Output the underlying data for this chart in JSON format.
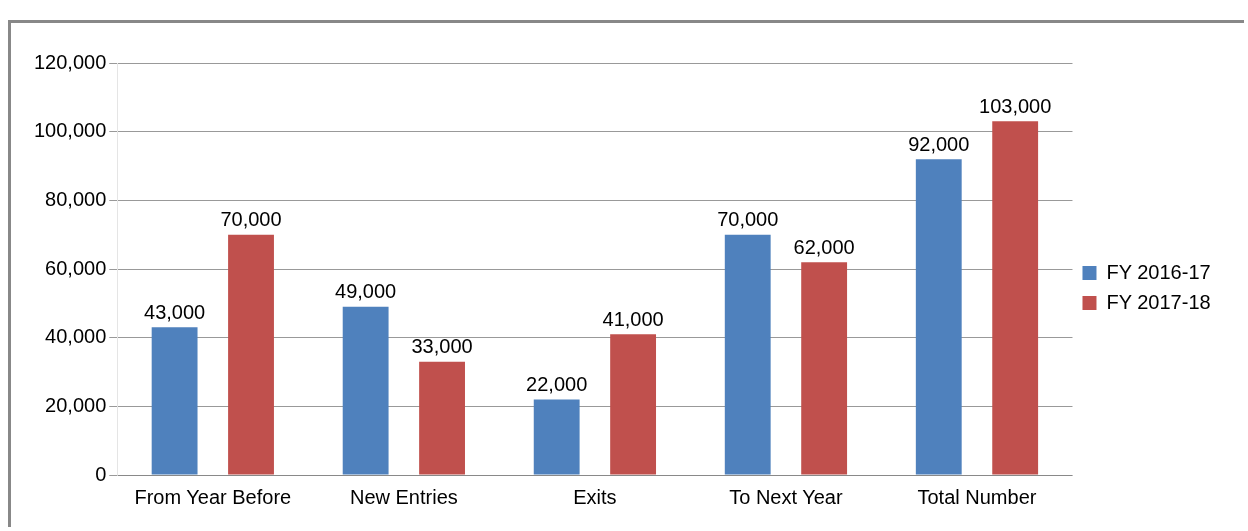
{
  "chart_data": {
    "type": "bar",
    "categories": [
      "From Year Before",
      "New Entries",
      "Exits",
      "To Next Year",
      "Total Number"
    ],
    "series": [
      {
        "name": "FY 2016-17",
        "color": "#4f81bd",
        "values": [
          43000,
          49000,
          22000,
          70000,
          92000
        ],
        "value_labels": [
          "43,000",
          "49,000",
          "22,000",
          "70,000",
          "92,000"
        ]
      },
      {
        "name": "FY 2017-18",
        "color": "#c0504d",
        "values": [
          70000,
          33000,
          41000,
          62000,
          103000
        ],
        "value_labels": [
          "70,000",
          "33,000",
          "41,000",
          "62,000",
          "103,000"
        ]
      }
    ],
    "ylim": [
      0,
      120000
    ],
    "yticks": [
      {
        "value": 0,
        "label": "0"
      },
      {
        "value": 20000,
        "label": "20,000"
      },
      {
        "value": 40000,
        "label": "40,000"
      },
      {
        "value": 60000,
        "label": "60,000"
      },
      {
        "value": 80000,
        "label": "80,000"
      },
      {
        "value": 100000,
        "label": "100,000"
      },
      {
        "value": 120000,
        "label": "120,000"
      }
    ],
    "grid": "y",
    "legend": "right"
  }
}
